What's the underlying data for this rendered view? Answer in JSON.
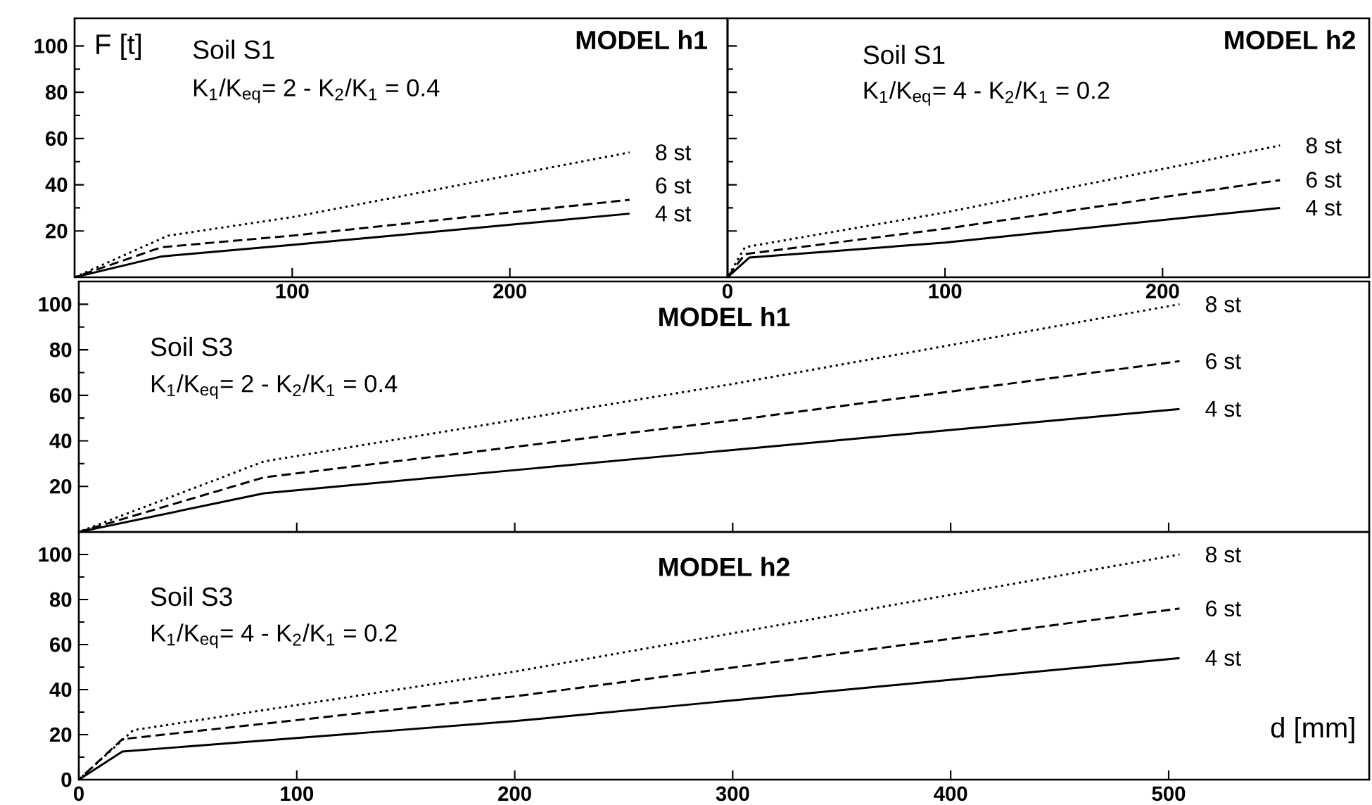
{
  "chart_data": [
    {
      "type": "line",
      "title": "MODEL h1",
      "subtitle": "Soil S1",
      "ylabel": "F [t]",
      "annotations": [
        "K$_{1}$/K$_{eq}$= 2  -  K$_{2}$/K$_{1}$ = 0.4"
      ],
      "xlim": [
        0,
        300
      ],
      "ylim": [
        0,
        112
      ],
      "xticks": [
        100,
        200
      ],
      "yticks": [
        20,
        40,
        60,
        80,
        100
      ],
      "series": [
        {
          "name": "4 st",
          "color": "#000000",
          "line_style": "solid",
          "x": [
            0,
            40,
            100,
            255
          ],
          "values": [
            0,
            9,
            14,
            27.5
          ]
        },
        {
          "name": "6 st",
          "color": "#000000",
          "line_style": "dashed",
          "x": [
            0,
            40,
            100,
            255
          ],
          "values": [
            0,
            13,
            18,
            33.5
          ]
        },
        {
          "name": "8 st",
          "color": "#000000",
          "line_style": "dotted",
          "x": [
            0,
            43,
            100,
            255
          ],
          "values": [
            0,
            18,
            26,
            54
          ]
        }
      ]
    },
    {
      "type": "line",
      "title": "MODEL h2",
      "subtitle": "Soil S1",
      "annotations": [
        "K$_{1}$/K$_{eq}$= 4  -  K$_{2}$/K$_{1}$ = 0.2"
      ],
      "xlim": [
        0,
        295
      ],
      "ylim": [
        0,
        112
      ],
      "xticks": [
        0,
        100,
        200
      ],
      "yticks": [
        20,
        40,
        60,
        80,
        100
      ],
      "tick_labels": "x",
      "series": [
        {
          "name": "4 st",
          "color": "#000000",
          "line_style": "solid",
          "x": [
            0,
            10,
            100,
            254
          ],
          "values": [
            0,
            8.5,
            15,
            30
          ]
        },
        {
          "name": "6 st",
          "color": "#000000",
          "line_style": "dashed",
          "x": [
            0,
            8,
            100,
            254
          ],
          "values": [
            0,
            10,
            21,
            42
          ]
        },
        {
          "name": "8 st",
          "color": "#000000",
          "line_style": "dotted",
          "x": [
            0,
            8,
            100,
            254
          ],
          "values": [
            0,
            13,
            28,
            57
          ]
        }
      ]
    },
    {
      "type": "line",
      "title": "MODEL h1",
      "subtitle": "Soil S3",
      "annotations": [
        "K$_{1}$/K$_{eq}$= 2  -  K$_{2}$/K$_{1}$ = 0.4"
      ],
      "xlim": [
        0,
        592
      ],
      "ylim": [
        0,
        110
      ],
      "xticks": [
        100,
        200,
        300,
        400,
        500
      ],
      "yticks": [
        20,
        40,
        60,
        80,
        100
      ],
      "tick_labels": "y",
      "series": [
        {
          "name": "4 st",
          "color": "#000000",
          "line_style": "solid",
          "x": [
            0,
            85,
            300,
            505
          ],
          "values": [
            0,
            17,
            36,
            54
          ]
        },
        {
          "name": "6 st",
          "color": "#000000",
          "line_style": "dashed",
          "x": [
            0,
            85,
            300,
            505
          ],
          "values": [
            0,
            24,
            49,
            75
          ]
        },
        {
          "name": "8 st",
          "color": "#000000",
          "line_style": "dotted",
          "x": [
            0,
            85,
            300,
            505
          ],
          "values": [
            0,
            31,
            65,
            100
          ]
        }
      ]
    },
    {
      "type": "line",
      "title": "MODEL h2",
      "subtitle": "Soil S3",
      "xlabel": "d [mm]",
      "annotations": [
        "K$_{1}$/K$_{eq}$= 4  -  K$_{2}$/K$_{1}$ = 0.2"
      ],
      "xlim": [
        0,
        592
      ],
      "ylim": [
        0,
        110
      ],
      "xticks": [
        0,
        100,
        200,
        300,
        400,
        500
      ],
      "yticks": [
        0,
        20,
        40,
        60,
        80,
        100
      ],
      "series": [
        {
          "name": "4 st",
          "color": "#000000",
          "line_style": "solid",
          "x": [
            0,
            20,
            200,
            505
          ],
          "values": [
            0,
            12.5,
            26,
            54
          ]
        },
        {
          "name": "6 st",
          "color": "#000000",
          "line_style": "dashed",
          "x": [
            0,
            20,
            200,
            505
          ],
          "values": [
            0,
            18,
            37,
            76
          ]
        },
        {
          "name": "8 st",
          "color": "#000000",
          "line_style": "dotted",
          "x": [
            0,
            25,
            200,
            505
          ],
          "values": [
            0,
            22,
            48,
            100
          ]
        }
      ]
    }
  ]
}
